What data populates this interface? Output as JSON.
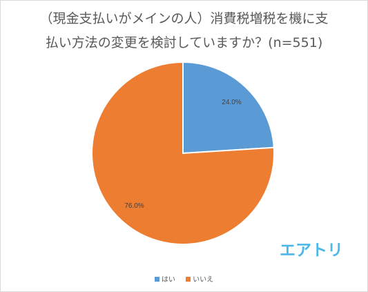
{
  "chart_data": {
    "type": "pie",
    "title_lines": [
      "（現金支払いがメインの人）消費税増税を機に支",
      "払い方法の変更を検討していますか？(n=551)"
    ],
    "categories": [
      "はい",
      "いいえ"
    ],
    "values": [
      24.0,
      76.0
    ],
    "data_labels": [
      "24.0%",
      "76.0%"
    ],
    "colors": [
      "#5b9bd5",
      "#ed7d31"
    ],
    "legend_position": "bottom",
    "start_angle_deg": 0,
    "direction": "clockwise"
  },
  "logo": {
    "text": "エアトリ",
    "color": "#4ab8e8"
  }
}
